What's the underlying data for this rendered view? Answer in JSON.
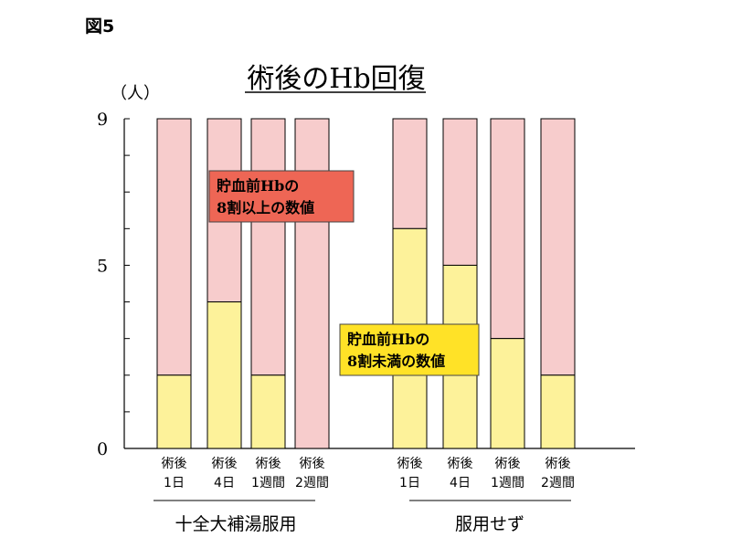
{
  "figure_label": "図5",
  "colors": {
    "upper": "#f7cccc",
    "lower": "#fdf29a",
    "bar_stroke": "#000000",
    "annot_upper_bg": "#ee6655",
    "annot_lower_bg": "#ffe227"
  },
  "chart_data": {
    "type": "bar",
    "stacked": true,
    "title": "術後のHb回復",
    "ylabel": "（人）",
    "ylim": [
      0,
      9
    ],
    "yticks": [
      0,
      5,
      9
    ],
    "grid": false,
    "categories": [
      {
        "line1": "術後",
        "line2": "1日"
      },
      {
        "line1": "術後",
        "line2": "4日"
      },
      {
        "line1": "術後",
        "line2": "1週間"
      },
      {
        "line1": "術後",
        "line2": "2週間"
      },
      {
        "line1": "術後",
        "line2": "1日"
      },
      {
        "line1": "術後",
        "line2": "4日"
      },
      {
        "line1": "術後",
        "line2": "1週間"
      },
      {
        "line1": "術後",
        "line2": "2週間"
      }
    ],
    "groups": [
      {
        "label": "十全大補湯服用",
        "indices": [
          0,
          1,
          2,
          3
        ]
      },
      {
        "label": "服用せず",
        "indices": [
          4,
          5,
          6,
          7
        ]
      }
    ],
    "series": [
      {
        "key": "lower",
        "values": [
          2,
          4,
          2,
          0,
          6,
          5,
          3,
          2
        ]
      },
      {
        "key": "upper",
        "values": [
          7,
          5,
          7,
          9,
          3,
          4,
          6,
          7
        ]
      }
    ],
    "annotations": [
      {
        "series": "upper",
        "line1": "貯血前Hbの",
        "line2": "8割以上の数値"
      },
      {
        "series": "lower",
        "line1": "貯血前Hbの",
        "line2": "8割未満の数値"
      }
    ]
  }
}
